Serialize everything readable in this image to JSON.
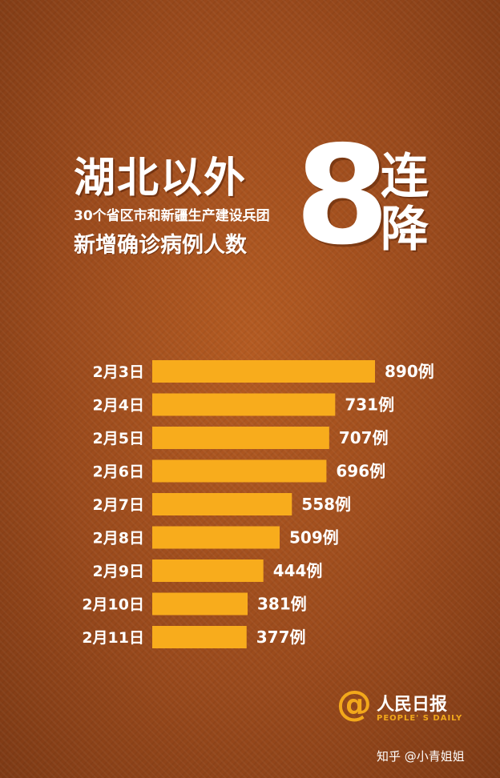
{
  "header": {
    "title": "湖北以外",
    "subtitle": "30个省区市和新疆生产建设兵团",
    "subtitle2": "新增确诊病例人数",
    "big_number": "8",
    "vertical_text": [
      "连",
      "降"
    ]
  },
  "chart_data": {
    "type": "bar",
    "orientation": "horizontal",
    "categories": [
      "2月3日",
      "2月4日",
      "2月5日",
      "2月6日",
      "2月7日",
      "2月8日",
      "2月9日",
      "2月10日",
      "2月11日"
    ],
    "values": [
      890,
      731,
      707,
      696,
      558,
      509,
      444,
      381,
      377
    ],
    "value_suffix": "例",
    "bar_color": "#f8ac1c",
    "label_color": "#ffffff"
  },
  "logo": {
    "cn": "人民日报",
    "en": "PEOPLE' S DAILY"
  },
  "watermark": "知乎 @小青姐姐"
}
